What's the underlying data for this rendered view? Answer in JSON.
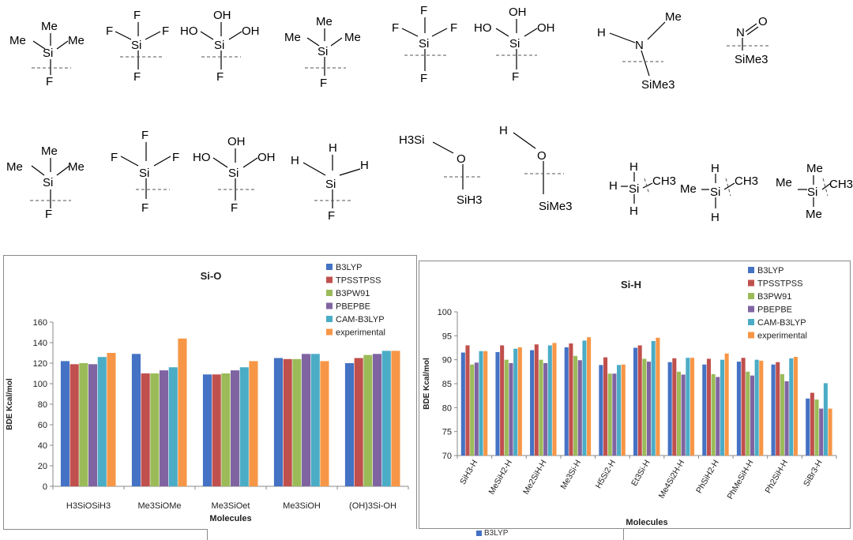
{
  "structures": {
    "row1": [
      {
        "atoms": [
          "Me",
          "Me",
          "Me",
          "Si",
          "F"
        ]
      },
      {
        "atoms": [
          "F",
          "F",
          "F",
          "Si",
          "F"
        ]
      },
      {
        "atoms": [
          "HO",
          "OH",
          "OH",
          "Si",
          "F"
        ]
      },
      {
        "atoms": [
          "Me",
          "Me",
          "Me",
          "Si",
          "F"
        ]
      },
      {
        "atoms": [
          "F",
          "F",
          "F",
          "Si",
          "F"
        ]
      },
      {
        "atoms": [
          "HO",
          "OH",
          "OH",
          "Si",
          "F"
        ]
      },
      {
        "atoms": [
          "H",
          "N",
          "Me",
          "SiMe3"
        ]
      },
      {
        "atoms": [
          "N",
          "O",
          "SiMe3"
        ]
      }
    ],
    "row2": [
      {
        "atoms": [
          "Me",
          "Me",
          "Me",
          "Si",
          "F"
        ]
      },
      {
        "atoms": [
          "F",
          "F",
          "F",
          "Si",
          "F"
        ]
      },
      {
        "atoms": [
          "HO",
          "OH",
          "OH",
          "Si",
          "F"
        ]
      },
      {
        "atoms": [
          "H",
          "H",
          "H",
          "Si",
          "F"
        ]
      },
      {
        "atoms": [
          "H3Si",
          "O",
          "SiH3"
        ]
      },
      {
        "atoms": [
          "H",
          "O",
          "SiMe3"
        ]
      },
      {
        "atoms": [
          "H",
          "H",
          "H",
          "Si",
          "CH3"
        ]
      },
      {
        "atoms": [
          "Me",
          "H",
          "H",
          "Si",
          "CH3"
        ]
      },
      {
        "atoms": [
          "Me",
          "Me",
          "Me",
          "Si",
          "CH3"
        ]
      }
    ]
  },
  "chart_data": [
    {
      "type": "bar",
      "title": "Si-O",
      "xlabel": "Molecules",
      "ylabel": "BDE Kcal/mol",
      "ylim": [
        0,
        160
      ],
      "yticks": [
        0,
        20,
        40,
        60,
        80,
        100,
        120,
        140,
        160
      ],
      "grid": false,
      "legend": "top-right",
      "categories": [
        "H3SiOSiH3",
        "Me3SiOMe",
        "Me3SiOet",
        "Me3SiOH",
        "(OH)3Si-OH"
      ],
      "series": [
        {
          "name": "B3LYP",
          "color": "#4472c4",
          "values": [
            122,
            129,
            109,
            125,
            120
          ]
        },
        {
          "name": "TPSSTPSS",
          "color": "#c0504d",
          "values": [
            119,
            110,
            109,
            124,
            125
          ]
        },
        {
          "name": "B3PW91",
          "color": "#9bbb59",
          "values": [
            120,
            110,
            110,
            124,
            128
          ]
        },
        {
          "name": "PBEPBE",
          "color": "#8064a2",
          "values": [
            119,
            113,
            113,
            129,
            129
          ]
        },
        {
          "name": "CAM-B3LYP",
          "color": "#4bacc6",
          "values": [
            126,
            116,
            116,
            129,
            132
          ]
        },
        {
          "name": "experimental",
          "color": "#f79646",
          "values": [
            130,
            144,
            122,
            122,
            132
          ]
        }
      ]
    },
    {
      "type": "bar",
      "title": "Si-H",
      "xlabel": "Molecules",
      "ylabel": "BDE Kcal/mol",
      "ylim": [
        70,
        100
      ],
      "yticks": [
        70,
        75,
        80,
        85,
        90,
        95,
        100
      ],
      "grid": false,
      "legend": "top-right",
      "categories": [
        "SiH3-H",
        "MeSiH2-H",
        "Me2SiH-H",
        "Me3Si-H",
        "H5Si2-H",
        "Et3Si-H",
        "Me4Si2H-H",
        "PhSiH2-H",
        "PhMeSiH-H",
        "Ph2SiH-H",
        "SiBr3-H"
      ],
      "series": [
        {
          "name": "B3LYP",
          "color": "#4472c4",
          "values": [
            91.5,
            91.6,
            92.0,
            92.6,
            88.9,
            92.5,
            89.5,
            89.0,
            89.6,
            89.0,
            81.9
          ]
        },
        {
          "name": "TPSSTPSS",
          "color": "#c0504d",
          "values": [
            93.0,
            93.0,
            93.2,
            93.4,
            90.5,
            93.0,
            90.3,
            90.2,
            90.4,
            89.5,
            83.1
          ]
        },
        {
          "name": "B3PW91",
          "color": "#9bbb59",
          "values": [
            89.0,
            90.0,
            90.0,
            90.8,
            87.1,
            90.2,
            87.5,
            87.0,
            87.5,
            87.0,
            81.7
          ]
        },
        {
          "name": "PBEPBE",
          "color": "#8064a2",
          "values": [
            89.4,
            89.3,
            89.3,
            89.9,
            87.1,
            89.6,
            86.9,
            86.4,
            86.7,
            85.5,
            79.8
          ]
        },
        {
          "name": "CAM-B3LYP",
          "color": "#4bacc6",
          "values": [
            91.8,
            92.3,
            93.0,
            94.0,
            88.9,
            93.9,
            90.4,
            90.0,
            90.0,
            90.3,
            85.1
          ]
        },
        {
          "name": "experimental",
          "color": "#f79646",
          "values": [
            91.8,
            92.6,
            93.5,
            94.7,
            89.0,
            94.6,
            90.4,
            91.3,
            89.8,
            90.6,
            79.8
          ]
        }
      ]
    }
  ],
  "bottom_strip": {
    "legend_label": "B3LYP",
    "legend_color": "#4472c4"
  }
}
